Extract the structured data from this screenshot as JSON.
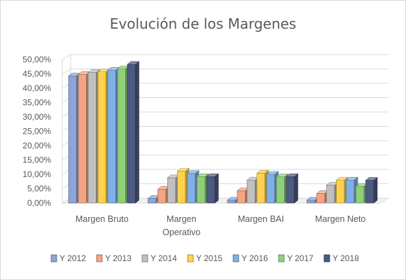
{
  "chart_data": {
    "type": "bar",
    "title": "Evolución de los Margenes",
    "xlabel": "",
    "ylabel": "",
    "categories": [
      "Margen Bruto",
      "Margen Operativo",
      "Margen BAI",
      "Margen Neto"
    ],
    "category_labels": [
      [
        "Margen Bruto"
      ],
      [
        "Margen",
        "Operativo"
      ],
      [
        "Margen BAI"
      ],
      [
        "Margen Neto"
      ]
    ],
    "y_ticks": [
      "0,00%",
      "5,00%",
      "10,00%",
      "15,00%",
      "20,00%",
      "25,00%",
      "30,00%",
      "35,00%",
      "40,00%",
      "45,00%",
      "50,00%"
    ],
    "ylim": [
      0,
      0.5
    ],
    "grid": true,
    "legend_position": "bottom",
    "style": "3d-clustered-column",
    "series": [
      {
        "name": "Y 2012",
        "color": "#8ea4d8",
        "values": [
          0.443,
          0.016,
          0.01,
          0.01
        ]
      },
      {
        "name": "Y 2013",
        "color": "#f4a582",
        "values": [
          0.448,
          0.048,
          0.043,
          0.033
        ]
      },
      {
        "name": "Y 2014",
        "color": "#c0c0c0",
        "values": [
          0.455,
          0.088,
          0.08,
          0.062
        ]
      },
      {
        "name": "Y 2015",
        "color": "#ffd24d",
        "values": [
          0.457,
          0.111,
          0.104,
          0.08
        ]
      },
      {
        "name": "Y 2016",
        "color": "#7fb0e6",
        "values": [
          0.463,
          0.103,
          0.1,
          0.08
        ]
      },
      {
        "name": "Y 2017",
        "color": "#8fcf7a",
        "values": [
          0.468,
          0.092,
          0.091,
          0.058
        ]
      },
      {
        "name": "Y 2018",
        "color": "#4c5a80",
        "values": [
          0.483,
          0.092,
          0.092,
          0.079
        ]
      }
    ]
  }
}
